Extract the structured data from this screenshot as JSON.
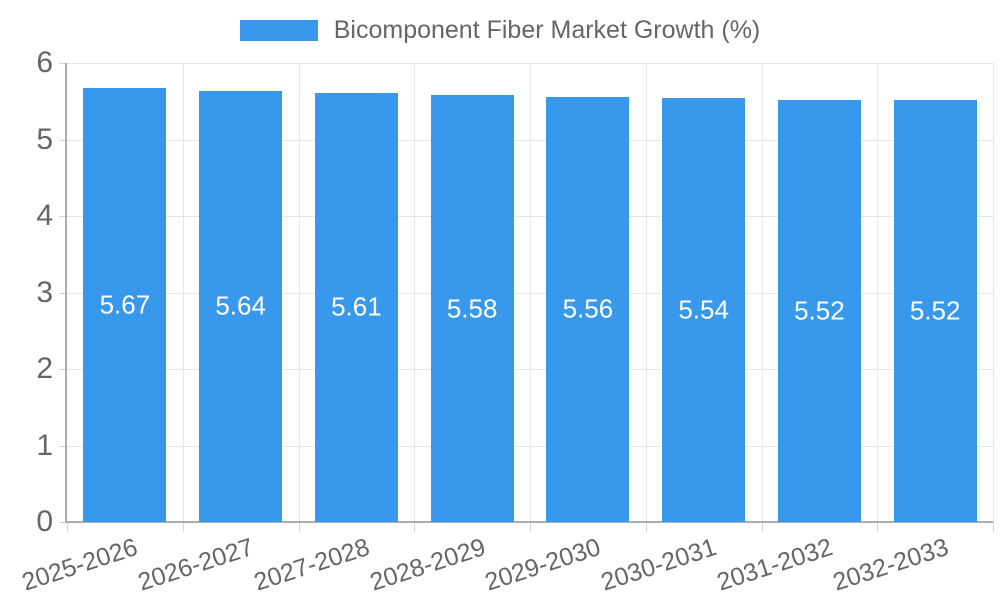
{
  "chart_data": {
    "type": "bar",
    "title": "Bicomponent Fiber Market Growth (%)",
    "categories": [
      "2025-2026",
      "2026-2027",
      "2027-2028",
      "2028-2029",
      "2029-2030",
      "2030-2031",
      "2031-2032",
      "2032-2033"
    ],
    "values": [
      5.67,
      5.64,
      5.61,
      5.58,
      5.56,
      5.54,
      5.52,
      5.52
    ],
    "data_labels": [
      "5.67",
      "5.64",
      "5.61",
      "5.58",
      "5.56",
      "5.54",
      "5.52",
      "5.52"
    ],
    "xlabel": "",
    "ylabel": "",
    "ylim": [
      0,
      6
    ],
    "ytick_step": 1,
    "ytick_labels": [
      "0",
      "1",
      "2",
      "3",
      "4",
      "5",
      "6"
    ],
    "grid": true,
    "legend_position": "top",
    "x_label_rotation_deg": -18,
    "colors": {
      "bar": "#3899EC",
      "bar_label_text": "#ffffff",
      "axis_text": "#666666",
      "gridline": "#e6e6e6",
      "axis_line": "#acacac",
      "tick": "#d4d4d4",
      "background": "#ffffff"
    }
  }
}
